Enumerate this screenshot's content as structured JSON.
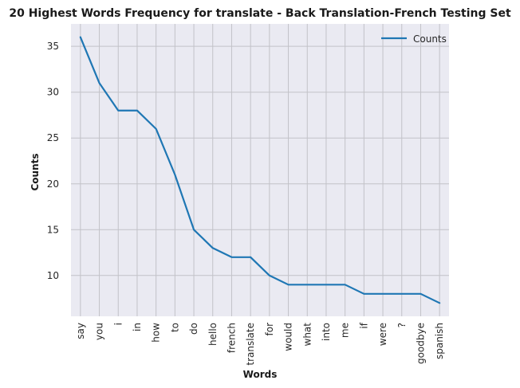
{
  "chart_data": {
    "type": "line",
    "title": "20 Highest Words Frequency for translate - Back Translation-French Testing Set",
    "xlabel": "Words",
    "ylabel": "Counts",
    "categories": [
      "say",
      "you",
      "i",
      "in",
      "how",
      "to",
      "do",
      "hello",
      "french",
      "translate",
      "for",
      "would",
      "what",
      "into",
      "me",
      "if",
      "were",
      "?",
      "goodbye",
      "spanish"
    ],
    "series": [
      {
        "name": "Counts",
        "values": [
          36,
          31,
          28,
          28,
          26,
          21,
          15,
          13,
          12,
          12,
          10,
          9,
          9,
          9,
          9,
          8,
          8,
          8,
          8,
          7
        ]
      }
    ],
    "ylim": [
      5.55,
      37.45
    ],
    "yticks": [
      "10",
      "15",
      "20",
      "25",
      "30",
      "35"
    ],
    "grid": true,
    "legend_position": "top-right",
    "colors": {
      "line": "#1f77b4",
      "plot_bg": "#eaeaf2",
      "grid": "#c2c2c8"
    }
  }
}
